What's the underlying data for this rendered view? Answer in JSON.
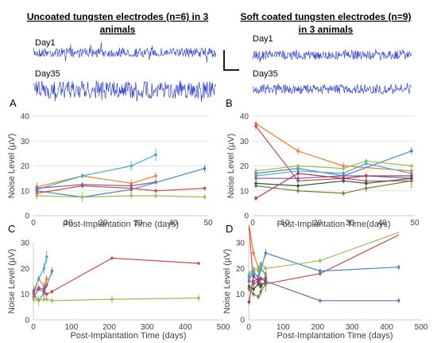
{
  "header": {
    "left_title_line1": "Uncoated tungsten electrodes (n=6) in 3",
    "left_title_line2": "animals",
    "right_title_line1": "Soft coated tungsten electrodes (n=9)",
    "right_title_line2": "in 3 animals"
  },
  "traces": {
    "day1_left": "Day1",
    "day35_left": "Day35",
    "day1_right": "Day1",
    "day35_right": "Day35",
    "trace_color": "#1f2fcf"
  },
  "chart_data": [
    {
      "panel": "A",
      "type": "line",
      "xlabel": "Post-Implantation Time (days)",
      "ylabel": "Noise Level (µV)",
      "xlim": [
        0,
        50
      ],
      "ylim": [
        0,
        40
      ],
      "xticks": [
        0,
        10,
        20,
        30,
        40,
        50
      ],
      "yticks": [
        0,
        10,
        20,
        30,
        40
      ],
      "grid": true,
      "series": [
        {
          "color": "#ed7d31",
          "x": [
            1,
            14,
            28,
            35
          ],
          "y": [
            11.5,
            16,
            13,
            16
          ],
          "err": [
            2,
            1,
            1.5,
            1.5
          ]
        },
        {
          "color": "#4bacc6",
          "x": [
            1,
            14,
            28,
            35
          ],
          "y": [
            10.5,
            16,
            20,
            24.5
          ],
          "err": [
            2,
            1,
            2,
            2.5
          ]
        },
        {
          "color": "#4f81bd",
          "x": [
            1,
            14,
            28,
            49
          ],
          "y": [
            10,
            7.5,
            10.5,
            19
          ],
          "err": [
            2,
            1,
            2,
            1.5
          ]
        },
        {
          "color": "#c0504d",
          "x": [
            1,
            14,
            28,
            35,
            49
          ],
          "y": [
            9,
            12,
            11,
            10,
            11
          ],
          "err": [
            1.5,
            1,
            1,
            1,
            0.8
          ]
        },
        {
          "color": "#8064a2",
          "x": [
            1,
            14,
            28,
            35
          ],
          "y": [
            11,
            12.5,
            12,
            13.5
          ],
          "err": [
            1.5,
            1,
            1,
            1
          ]
        },
        {
          "color": "#9bbb59",
          "x": [
            1,
            14,
            28,
            35,
            49
          ],
          "y": [
            8,
            7.5,
            8,
            8,
            7.5
          ],
          "err": [
            1.5,
            2,
            1,
            1,
            1
          ]
        }
      ]
    },
    {
      "panel": "B",
      "type": "line",
      "xlabel": "Post-Implantation Time(days)",
      "ylabel": "Noise Level (µV)",
      "xlim": [
        0,
        50
      ],
      "ylim": [
        0,
        40
      ],
      "xticks": [
        0,
        10,
        20,
        30,
        40,
        50
      ],
      "yticks": [
        0,
        10,
        20,
        30,
        40
      ],
      "grid": true,
      "series": [
        {
          "color": "#ed7d31",
          "x": [
            1,
            14,
            28,
            49
          ],
          "y": [
            37,
            26,
            20,
            18
          ],
          "err": [
            1,
            1.5,
            1.5,
            1
          ]
        },
        {
          "color": "#c0504d",
          "x": [
            1,
            14,
            28,
            35,
            49
          ],
          "y": [
            36,
            14,
            15,
            14,
            14
          ],
          "err": [
            1.5,
            1,
            1,
            1,
            1
          ]
        },
        {
          "color": "#4f81bd",
          "x": [
            1,
            14,
            28,
            49
          ],
          "y": [
            17,
            19,
            16,
            26
          ],
          "err": [
            1.5,
            1,
            1,
            1.5
          ]
        },
        {
          "color": "#9bbb59",
          "x": [
            1,
            14,
            28,
            35,
            49
          ],
          "y": [
            18,
            20,
            19,
            22,
            20
          ],
          "err": [
            1,
            1,
            1,
            1,
            1
          ]
        },
        {
          "color": "#4bacc6",
          "x": [
            1,
            14,
            28,
            35,
            49
          ],
          "y": [
            16,
            18,
            17,
            21,
            17
          ],
          "err": [
            1,
            1,
            1,
            1,
            1
          ]
        },
        {
          "color": "#8064a2",
          "x": [
            1,
            14,
            28,
            35,
            49
          ],
          "y": [
            15,
            15,
            16,
            16,
            15
          ],
          "err": [
            1,
            1,
            1,
            1,
            1
          ]
        },
        {
          "color": "#2e5a3a",
          "x": [
            1,
            14,
            28,
            35,
            49
          ],
          "y": [
            13,
            12,
            14,
            13,
            15
          ],
          "err": [
            1,
            1,
            1,
            1,
            1
          ]
        },
        {
          "color": "#7a7a3a",
          "x": [
            1,
            14,
            28,
            35,
            49
          ],
          "y": [
            12,
            10,
            9,
            11,
            14
          ],
          "err": [
            1,
            1,
            1,
            1.5,
            3
          ]
        },
        {
          "color": "#b03060",
          "x": [
            1,
            14,
            28,
            35,
            49
          ],
          "y": [
            7,
            17,
            15,
            16,
            16
          ],
          "err": [
            1,
            1,
            1,
            1,
            1
          ]
        }
      ]
    },
    {
      "panel": "C",
      "type": "line",
      "xlabel": "Post-Implantation Time (days)",
      "ylabel": "Noise Level (µV)",
      "xlim": [
        0,
        500
      ],
      "ylim": [
        0,
        30
      ],
      "xticks": [
        0,
        100,
        200,
        300,
        400,
        500
      ],
      "yticks": [
        0,
        10,
        20,
        30
      ],
      "grid": false,
      "series": [
        {
          "color": "#ed7d31",
          "x": [
            1,
            14,
            28,
            35
          ],
          "y": [
            11.5,
            16,
            13,
            16
          ],
          "err": [
            2,
            1,
            1.5,
            1.5
          ]
        },
        {
          "color": "#4bacc6",
          "x": [
            1,
            14,
            28,
            35
          ],
          "y": [
            10.5,
            16,
            20,
            24.5
          ],
          "err": [
            2,
            1,
            2,
            2.5
          ]
        },
        {
          "color": "#4f81bd",
          "x": [
            1,
            14,
            28,
            49
          ],
          "y": [
            10,
            7.5,
            10.5,
            19
          ],
          "err": [
            2,
            1,
            2,
            1.5
          ]
        },
        {
          "color": "#c0504d",
          "x": [
            1,
            14,
            28,
            35,
            49,
            207,
            435
          ],
          "y": [
            9,
            12,
            11,
            10,
            11,
            24,
            22
          ],
          "err": [
            1.5,
            1,
            1,
            1,
            0.8,
            0.5,
            0.5
          ]
        },
        {
          "color": "#8064a2",
          "x": [
            1,
            14,
            28,
            35
          ],
          "y": [
            11,
            12.5,
            12,
            13.5
          ],
          "err": [
            1.5,
            1,
            1,
            1
          ]
        },
        {
          "color": "#9bbb59",
          "x": [
            1,
            14,
            28,
            35,
            49,
            207,
            435
          ],
          "y": [
            8,
            7.5,
            8,
            8,
            7.5,
            8,
            8.5
          ],
          "err": [
            1.5,
            2,
            1,
            1,
            1,
            1.5,
            1.5
          ]
        }
      ]
    },
    {
      "panel": "D",
      "type": "line",
      "xlabel": "Post-Implantation Time (days)",
      "ylabel": "Noise Level (µV)",
      "xlim": [
        0,
        500
      ],
      "ylim": [
        0,
        30
      ],
      "xticks": [
        0,
        100,
        200,
        300,
        400,
        500
      ],
      "yticks": [
        0,
        10,
        20,
        30
      ],
      "grid": false,
      "series": [
        {
          "color": "#ed7d31",
          "x": [
            1,
            14,
            28,
            49
          ],
          "y": [
            37,
            26,
            20,
            18
          ],
          "err": [
            1,
            1.5,
            1.5,
            1
          ]
        },
        {
          "color": "#c0504d",
          "x": [
            1,
            14,
            28,
            35,
            49,
            207,
            435
          ],
          "y": [
            36,
            14,
            15,
            14,
            14,
            18,
            33
          ],
          "err": [
            1.5,
            1,
            1,
            1,
            1,
            1,
            1
          ]
        },
        {
          "color": "#4f81bd",
          "x": [
            1,
            14,
            28,
            49,
            207,
            435
          ],
          "y": [
            17,
            19,
            16,
            26,
            19,
            20.5
          ],
          "err": [
            1.5,
            1,
            1,
            1.5,
            1,
            1
          ]
        },
        {
          "color": "#9bbb59",
          "x": [
            1,
            14,
            28,
            35,
            49,
            207,
            435
          ],
          "y": [
            18,
            20,
            19,
            22,
            20,
            23,
            34
          ],
          "err": [
            1,
            1,
            1,
            1,
            1,
            1,
            1
          ]
        },
        {
          "color": "#4bacc6",
          "x": [
            1,
            14,
            28,
            35,
            49
          ],
          "y": [
            16,
            18,
            17,
            21,
            17
          ],
          "err": [
            1,
            1,
            1,
            1,
            1
          ]
        },
        {
          "color": "#8064a2",
          "x": [
            1,
            14,
            28,
            35,
            49,
            207,
            435
          ],
          "y": [
            15,
            15,
            16,
            16,
            15,
            7.5,
            7.5
          ],
          "err": [
            1,
            1,
            1,
            1,
            1,
            0.8,
            1
          ]
        },
        {
          "color": "#2e5a3a",
          "x": [
            1,
            14,
            28,
            35,
            49
          ],
          "y": [
            13,
            12,
            14,
            13,
            15
          ],
          "err": [
            1,
            1,
            1,
            1,
            1
          ]
        },
        {
          "color": "#7a7a3a",
          "x": [
            1,
            14,
            28,
            35,
            49
          ],
          "y": [
            12,
            10,
            9,
            11,
            14
          ],
          "err": [
            1,
            1,
            1,
            1.5,
            3
          ]
        },
        {
          "color": "#b03060",
          "x": [
            1,
            14,
            28,
            35,
            49
          ],
          "y": [
            7,
            17,
            15,
            16,
            16
          ],
          "err": [
            1,
            1,
            1,
            1,
            1
          ]
        }
      ]
    }
  ]
}
